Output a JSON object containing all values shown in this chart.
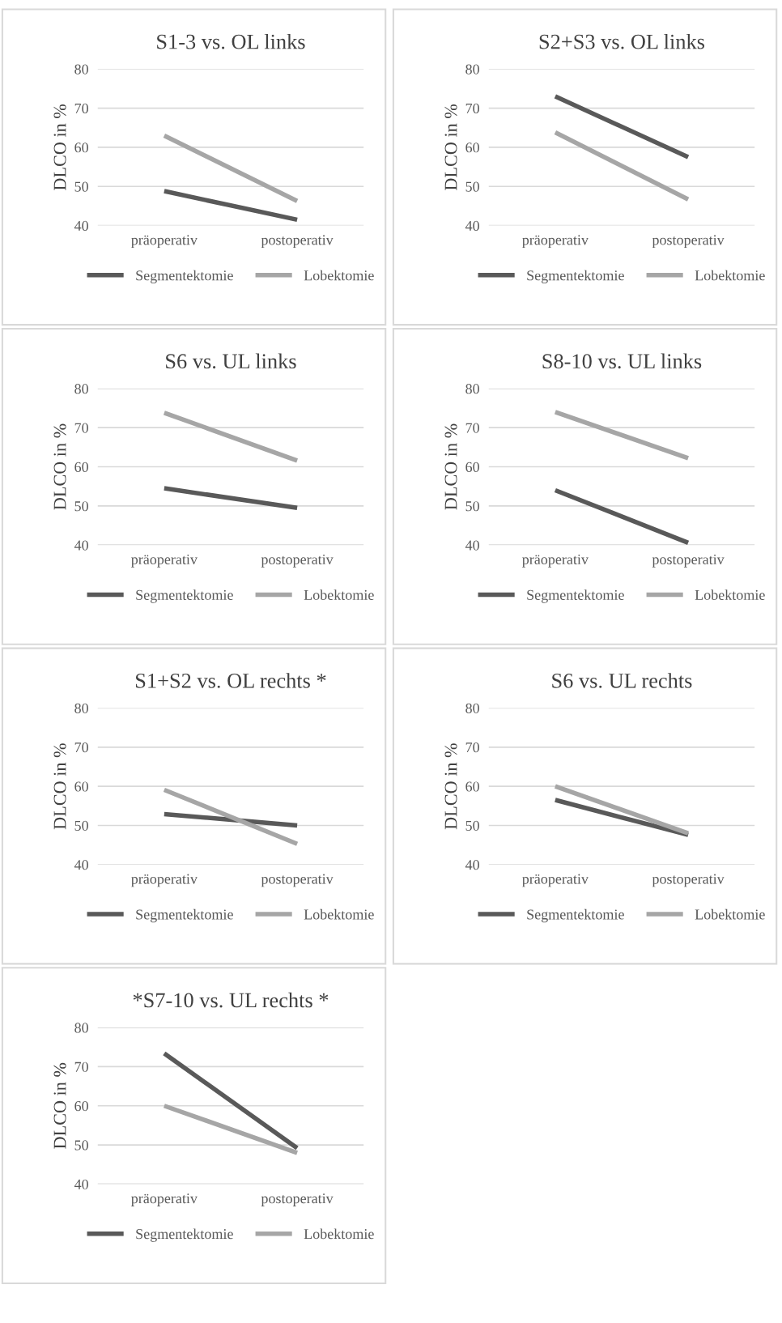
{
  "chart_data": [
    {
      "type": "line",
      "title": "S1-3 vs. OL links",
      "ylabel": "DLCO in %",
      "categories": [
        "präoperativ",
        "postoperativ"
      ],
      "ylim": [
        40,
        80
      ],
      "yticks": [
        40,
        50,
        60,
        70,
        80
      ],
      "grid": "y",
      "legend": "bottom",
      "marker": "none",
      "line_style": "solid",
      "series": [
        {
          "name": "Segmentektomie",
          "color": "#595959",
          "values": [
            48.8,
            41.5
          ]
        },
        {
          "name": "Lobektomie",
          "color": "#a6a6a6",
          "values": [
            63,
            46.3
          ]
        }
      ]
    },
    {
      "type": "line",
      "title": "S2+S3 vs. OL links",
      "ylabel": "DLCO in %",
      "categories": [
        "präoperativ",
        "postoperativ"
      ],
      "ylim": [
        40,
        80
      ],
      "yticks": [
        40,
        50,
        60,
        70,
        80
      ],
      "grid": "y",
      "legend": "bottom",
      "marker": "none",
      "line_style": "solid",
      "series": [
        {
          "name": "Segmentektomie",
          "color": "#595959",
          "values": [
            73,
            57.5
          ]
        },
        {
          "name": "Lobektomie",
          "color": "#a6a6a6",
          "values": [
            63.8,
            46.7
          ]
        }
      ]
    },
    {
      "type": "line",
      "title": "S6 vs. UL links",
      "ylabel": "DLCO in %",
      "categories": [
        "präoperativ",
        "postoperativ"
      ],
      "ylim": [
        40,
        80
      ],
      "yticks": [
        40,
        50,
        60,
        70,
        80
      ],
      "grid": "y",
      "legend": "bottom",
      "marker": "none",
      "line_style": "solid",
      "series": [
        {
          "name": "Segmentektomie",
          "color": "#595959",
          "values": [
            54.5,
            49.5
          ]
        },
        {
          "name": "Lobektomie",
          "color": "#a6a6a6",
          "values": [
            73.8,
            61.6
          ]
        }
      ]
    },
    {
      "type": "line",
      "title": "S8-10 vs. UL links",
      "ylabel": "DLCO in %",
      "categories": [
        "präoperativ",
        "postoperativ"
      ],
      "ylim": [
        40,
        80
      ],
      "yticks": [
        40,
        50,
        60,
        70,
        80
      ],
      "grid": "y",
      "legend": "bottom",
      "marker": "none",
      "line_style": "solid",
      "series": [
        {
          "name": "Segmentektomie",
          "color": "#595959",
          "values": [
            54,
            40.6
          ]
        },
        {
          "name": "Lobektomie",
          "color": "#a6a6a6",
          "values": [
            74,
            62.2
          ]
        }
      ]
    },
    {
      "type": "line",
      "title": "S1+S2 vs. OL rechts *",
      "ylabel": "DLCO in %",
      "categories": [
        "präoperativ",
        "postoperativ"
      ],
      "ylim": [
        40,
        80
      ],
      "yticks": [
        40,
        50,
        60,
        70,
        80
      ],
      "grid": "y",
      "legend": "bottom",
      "marker": "none",
      "line_style": "solid",
      "series": [
        {
          "name": "Segmentektomie",
          "color": "#595959",
          "values": [
            52.9,
            50
          ]
        },
        {
          "name": "Lobektomie",
          "color": "#a6a6a6",
          "values": [
            59.1,
            45.3
          ]
        }
      ]
    },
    {
      "type": "line",
      "title": "S6 vs. UL rechts",
      "ylabel": "DLCO in %",
      "categories": [
        "präoperativ",
        "postoperativ"
      ],
      "ylim": [
        40,
        80
      ],
      "yticks": [
        40,
        50,
        60,
        70,
        80
      ],
      "grid": "y",
      "legend": "bottom",
      "marker": "none",
      "line_style": "solid",
      "series": [
        {
          "name": "Segmentektomie",
          "color": "#595959",
          "values": [
            56.5,
            47.6
          ]
        },
        {
          "name": "Lobektomie",
          "color": "#a6a6a6",
          "values": [
            60,
            48
          ]
        }
      ]
    },
    {
      "type": "line",
      "title": "*S7-10 vs. UL rechts *",
      "ylabel": "DLCO in %",
      "categories": [
        "präoperativ",
        "postoperativ"
      ],
      "ylim": [
        40,
        80
      ],
      "yticks": [
        40,
        50,
        60,
        70,
        80
      ],
      "grid": "y",
      "legend": "bottom",
      "marker": "none",
      "line_style": "solid",
      "series": [
        {
          "name": "Segmentektomie",
          "color": "#595959",
          "values": [
            73.4,
            49.2
          ]
        },
        {
          "name": "Lobektomie",
          "color": "#a6a6a6",
          "values": [
            60,
            48
          ]
        }
      ]
    }
  ]
}
